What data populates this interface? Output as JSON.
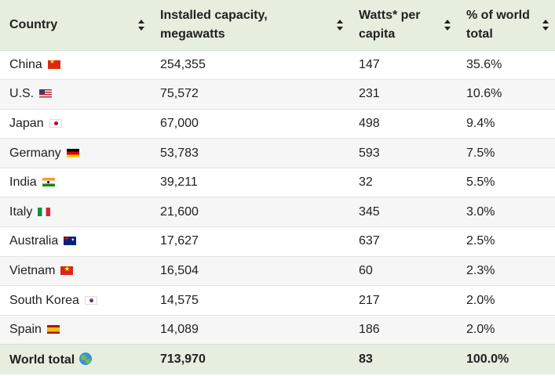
{
  "table": {
    "headers": [
      {
        "label": "Country"
      },
      {
        "label": "Installed capacity, megawatts"
      },
      {
        "label": "Watts* per capita"
      },
      {
        "label": "% of world total"
      }
    ],
    "rows": [
      {
        "country": "China",
        "flag": "flag-cn",
        "capacity": "254,355",
        "watts": "147",
        "percent": "35.6%"
      },
      {
        "country": "U.S.",
        "flag": "flag-us",
        "capacity": "75,572",
        "watts": "231",
        "percent": "10.6%"
      },
      {
        "country": "Japan",
        "flag": "flag-jp",
        "capacity": "67,000",
        "watts": "498",
        "percent": "9.4%"
      },
      {
        "country": "Germany",
        "flag": "flag-de",
        "capacity": "53,783",
        "watts": "593",
        "percent": "7.5%"
      },
      {
        "country": "India",
        "flag": "flag-in",
        "capacity": "39,211",
        "watts": "32",
        "percent": "5.5%"
      },
      {
        "country": "Italy",
        "flag": "flag-it",
        "capacity": "21,600",
        "watts": "345",
        "percent": "3.0%"
      },
      {
        "country": "Australia",
        "flag": "flag-au",
        "capacity": "17,627",
        "watts": "637",
        "percent": "2.5%"
      },
      {
        "country": "Vietnam",
        "flag": "flag-vn",
        "capacity": "16,504",
        "watts": "60",
        "percent": "2.3%"
      },
      {
        "country": "South Korea",
        "flag": "flag-kr",
        "capacity": "14,575",
        "watts": "217",
        "percent": "2.0%"
      },
      {
        "country": "Spain",
        "flag": "flag-es",
        "capacity": "14,089",
        "watts": "186",
        "percent": "2.0%"
      }
    ],
    "total": {
      "country": "World total",
      "icon": "globe-icon",
      "capacity": "713,970",
      "watts": "83",
      "percent": "100.0%"
    }
  },
  "colors": {
    "header_bg": "#e6eedf",
    "row_alt_bg": "#f6f6f6",
    "text": "#202122"
  }
}
